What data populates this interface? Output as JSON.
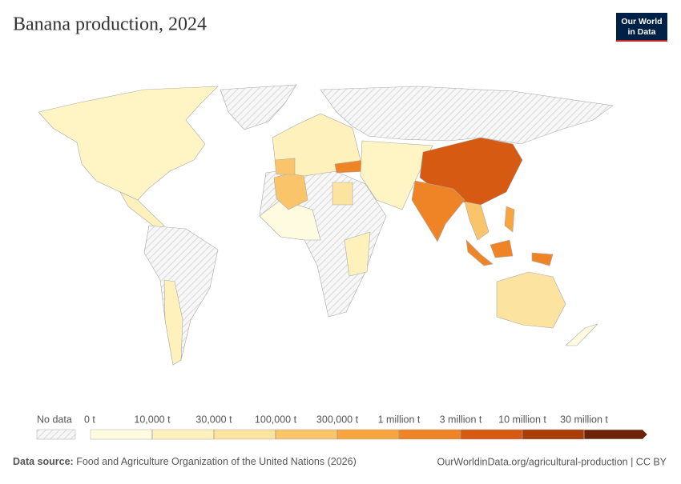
{
  "header": {
    "title": "Banana production, 2024",
    "logo": [
      "Our World",
      "in Data"
    ]
  },
  "legend": {
    "no_data": "No data",
    "ticks": [
      "0 t",
      "10,000 t",
      "30,000 t",
      "100,000 t",
      "300,000 t",
      "1 million t",
      "3 million t",
      "10 million t",
      "30 million t"
    ],
    "colors": [
      "#fefbe0",
      "#fef1bb",
      "#fce3a0",
      "#f9c46a",
      "#f6a53f",
      "#ef8426",
      "#d75a12",
      "#a83d08",
      "#6b2506"
    ]
  },
  "footer": {
    "source_label": "Data source:",
    "source": "Food and Agriculture Organization of the United Nations (2026)",
    "url": "OurWorldinData.org/agricultural-production | CC BY"
  }
}
